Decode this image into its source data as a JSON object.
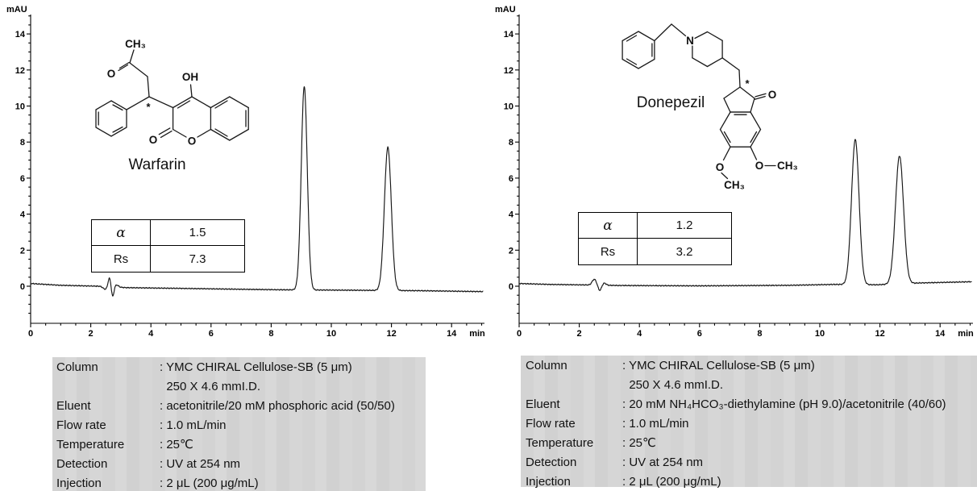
{
  "charts": [
    {
      "y_axis_label": "mAU",
      "x_axis_label": "min",
      "molecule": {
        "name": "Warfarin",
        "labels": {
          "methyl": "CH₃",
          "ketone_o": "O",
          "hydroxyl": "OH",
          "stereocenter": "*",
          "lactone_o": "O",
          "ring_o": "O"
        }
      },
      "stats": {
        "rows": [
          [
            "α",
            "1.5"
          ],
          [
            "Rs",
            "7.3"
          ]
        ]
      },
      "conditions": [
        {
          "label": "Column",
          "value": ": YMC CHIRAL Cellulose-SB (5 μm)"
        },
        {
          "label": "",
          "value": "  250 X 4.6 mmI.D."
        },
        {
          "label": "Eluent",
          "value": ": acetonitrile/20 mM phosphoric acid (50/50)"
        },
        {
          "label": "Flow rate",
          "value": ": 1.0 mL/min"
        },
        {
          "label": "Temperature",
          "value": ": 25℃"
        },
        {
          "label": "Detection",
          "value": ": UV at 254 nm"
        },
        {
          "label": "Injection",
          "value": ": 2 μL (200 μg/mL)"
        }
      ]
    },
    {
      "y_axis_label": "mAU",
      "x_axis_label": "min",
      "molecule": {
        "name": "Donepezil",
        "labels": {
          "n": "N",
          "stereocenter": "*",
          "ketone_o": "O",
          "methoxy_left_o": "O",
          "methoxy_left_ch3": "CH₃",
          "methoxy_right_o": "O",
          "methoxy_right_ch3": "CH₃"
        }
      },
      "stats": {
        "rows": [
          [
            "α",
            "1.2"
          ],
          [
            "Rs",
            "3.2"
          ]
        ]
      },
      "conditions": [
        {
          "label": "Column",
          "value": ": YMC CHIRAL Cellulose-SB (5 μm)"
        },
        {
          "label": "",
          "value": "  250 X 4.6 mmI.D."
        },
        {
          "label": "Eluent",
          "value": ": 20 mM NH₄HCO₃-diethylamine (pH 9.0)/acetonitrile (40/60)"
        },
        {
          "label": "Flow rate",
          "value": ": 1.0 mL/min"
        },
        {
          "label": "Temperature",
          "value": ": 25℃"
        },
        {
          "label": "Detection",
          "value": ": UV at 254 nm"
        },
        {
          "label": "Injection",
          "value": ": 2 μL (200 μg/mL)"
        }
      ]
    }
  ],
  "chart_data": [
    {
      "type": "line",
      "title": "Chiral separation of Warfarin enantiomers",
      "xlabel": "min",
      "ylabel": "mAU",
      "xlim": [
        0,
        15.1
      ],
      "ylim": [
        -2,
        15.1
      ],
      "x_major_ticks": [
        0,
        2,
        4,
        6,
        8,
        10,
        12,
        14
      ],
      "y_major_ticks": [
        0,
        2,
        4,
        6,
        8,
        10,
        12,
        14
      ],
      "minor_tick_step": 0.5,
      "grid": false,
      "selectivity_alpha": 1.5,
      "resolution_rs": 7.3,
      "peaks": [
        {
          "retention_min": 9.1,
          "height_mau": 11.3,
          "sigma_min": 0.1
        },
        {
          "retention_min": 11.88,
          "height_mau": 7.95,
          "sigma_min": 0.115
        }
      ],
      "baseline_anchors": [
        [
          0,
          0.15
        ],
        [
          1,
          0.05
        ],
        [
          2.3,
          0.0
        ],
        [
          3.2,
          -0.08
        ],
        [
          5,
          -0.12
        ],
        [
          7,
          -0.17
        ],
        [
          8.5,
          -0.2
        ],
        [
          10.5,
          -0.22
        ],
        [
          13,
          -0.25
        ],
        [
          15.1,
          -0.3
        ]
      ],
      "injection_artifacts": [
        {
          "t": 2.48,
          "a": -0.15,
          "s": 0.07
        },
        {
          "t": 2.62,
          "a": 0.5,
          "s": 0.045
        },
        {
          "t": 2.73,
          "a": -0.55,
          "s": 0.04
        },
        {
          "t": 2.86,
          "a": 0.12,
          "s": 0.06
        }
      ],
      "noise_seed": 1
    },
    {
      "type": "line",
      "title": "Chiral separation of Donepezil enantiomers",
      "xlabel": "min",
      "ylabel": "mAU",
      "xlim": [
        0,
        15.1
      ],
      "ylim": [
        -2,
        15.1
      ],
      "x_major_ticks": [
        0,
        2,
        4,
        6,
        8,
        10,
        12,
        14
      ],
      "y_major_ticks": [
        0,
        2,
        4,
        6,
        8,
        10,
        12,
        14
      ],
      "minor_tick_step": 0.5,
      "grid": false,
      "selectivity_alpha": 1.2,
      "resolution_rs": 3.2,
      "peaks": [
        {
          "retention_min": 11.18,
          "height_mau": 8.05,
          "sigma_min": 0.125
        },
        {
          "retention_min": 12.65,
          "height_mau": 7.1,
          "sigma_min": 0.135
        }
      ],
      "baseline_anchors": [
        [
          0,
          0.15
        ],
        [
          1,
          0.1
        ],
        [
          2.3,
          0.07
        ],
        [
          3.3,
          0.04
        ],
        [
          6,
          0.02
        ],
        [
          9,
          0.05
        ],
        [
          10.5,
          0.1
        ],
        [
          11.9,
          0.08
        ],
        [
          13.3,
          0.18
        ],
        [
          15.1,
          0.25
        ]
      ],
      "injection_artifacts": [
        {
          "t": 2.5,
          "a": 0.32,
          "s": 0.07
        },
        {
          "t": 2.68,
          "a": -0.3,
          "s": 0.055
        },
        {
          "t": 2.83,
          "a": 0.12,
          "s": 0.06
        }
      ],
      "noise_seed": 7
    }
  ]
}
